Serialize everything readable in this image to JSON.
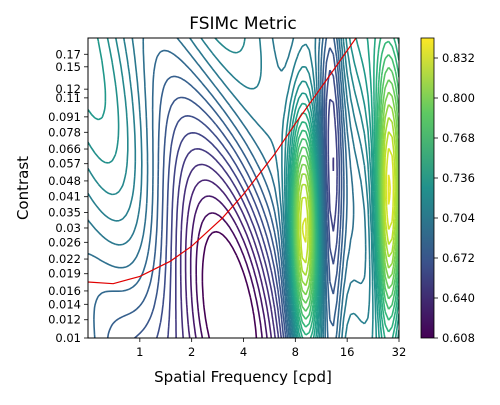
{
  "chart_data": {
    "type": "contour",
    "title": "FSIMc Metric",
    "xlabel": "Spatial Frequency [cpd]",
    "ylabel": "Contrast",
    "x_scale": "log2",
    "y_scale": "log",
    "xlim": [
      0.5,
      32
    ],
    "ylim": [
      0.01,
      0.2
    ],
    "x_ticks": [
      {
        "value": 1,
        "label": "1"
      },
      {
        "value": 2,
        "label": "2"
      },
      {
        "value": 4,
        "label": "4"
      },
      {
        "value": 8,
        "label": "8"
      },
      {
        "value": 16,
        "label": "16"
      },
      {
        "value": 32,
        "label": "32"
      }
    ],
    "y_ticks": [
      {
        "value": 0.01,
        "label": "0.01"
      },
      {
        "value": 0.012,
        "label": "0.012"
      },
      {
        "value": 0.014,
        "label": "0.014"
      },
      {
        "value": 0.016,
        "label": "0.016"
      },
      {
        "value": 0.019,
        "label": "0.019"
      },
      {
        "value": 0.022,
        "label": "0.022"
      },
      {
        "value": 0.026,
        "label": "0.026"
      },
      {
        "value": 0.03,
        "label": "0.03"
      },
      {
        "value": 0.035,
        "label": "0.035"
      },
      {
        "value": 0.041,
        "label": "0.041"
      },
      {
        "value": 0.048,
        "label": "0.048"
      },
      {
        "value": 0.057,
        "label": "0.057"
      },
      {
        "value": 0.066,
        "label": "0.066"
      },
      {
        "value": 0.078,
        "label": "0.078"
      },
      {
        "value": 0.091,
        "label": "0.091"
      },
      {
        "value": 0.11,
        "label": "0.11"
      },
      {
        "value": 0.12,
        "label": "0.12"
      },
      {
        "value": 0.15,
        "label": "0.15"
      },
      {
        "value": 0.17,
        "label": "0.17"
      }
    ],
    "colorbar": {
      "colormap": "viridis",
      "min": 0.608,
      "max": 0.848,
      "ticks": [
        {
          "value": 0.608,
          "label": "0.608"
        },
        {
          "value": 0.64,
          "label": "0.640"
        },
        {
          "value": 0.672,
          "label": "0.672"
        },
        {
          "value": 0.704,
          "label": "0.704"
        },
        {
          "value": 0.736,
          "label": "0.736"
        },
        {
          "value": 0.768,
          "label": "0.768"
        },
        {
          "value": 0.8,
          "label": "0.800"
        },
        {
          "value": 0.832,
          "label": "0.832"
        }
      ],
      "level_step": 0.008
    },
    "peaks": [
      {
        "x": 2.8,
        "y": 0.01,
        "min_level": 0.608
      },
      {
        "x": 9,
        "y": 0.03,
        "max_level": 0.848
      },
      {
        "x": 28,
        "y": 0.035,
        "max_level": 0.848
      }
    ],
    "threshold_curve": {
      "color": "#e00000",
      "points": [
        [
          0.5,
          0.0175
        ],
        [
          0.7,
          0.0172
        ],
        [
          1,
          0.0185
        ],
        [
          1.5,
          0.0215
        ],
        [
          2,
          0.025
        ],
        [
          3,
          0.033
        ],
        [
          4,
          0.042
        ],
        [
          6,
          0.062
        ],
        [
          8,
          0.085
        ],
        [
          12,
          0.13
        ],
        [
          18,
          0.2
        ]
      ]
    },
    "grid": false
  }
}
